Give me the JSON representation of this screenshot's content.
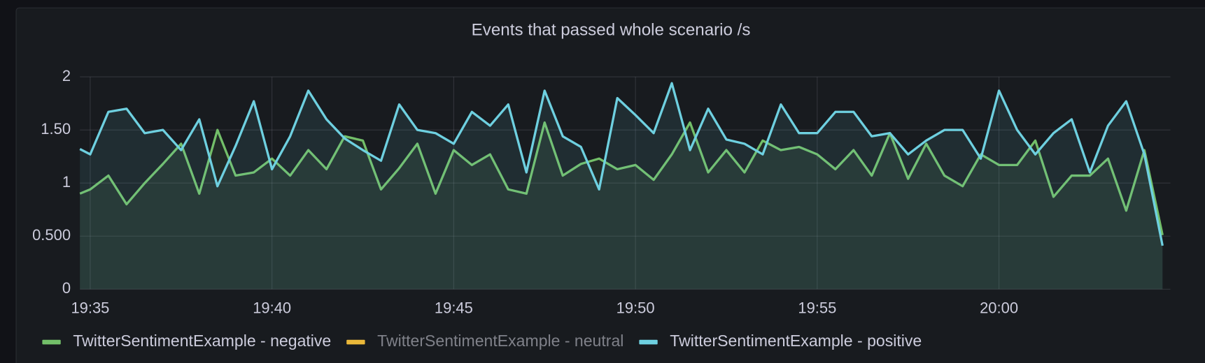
{
  "chart_data": {
    "type": "line",
    "title": "Events that passed whole scenario /s",
    "x": [
      "19:34:43",
      "19:35:00",
      "19:35:30",
      "19:36:00",
      "19:36:30",
      "19:37:00",
      "19:37:30",
      "19:38:00",
      "19:38:30",
      "19:39:00",
      "19:39:30",
      "19:40:00",
      "19:40:30",
      "19:41:00",
      "19:41:30",
      "19:42:00",
      "19:42:30",
      "19:43:00",
      "19:43:30",
      "19:44:00",
      "19:44:30",
      "19:45:00",
      "19:45:30",
      "19:46:00",
      "19:46:30",
      "19:47:00",
      "19:47:30",
      "19:48:00",
      "19:48:30",
      "19:49:00",
      "19:49:30",
      "19:50:00",
      "19:50:30",
      "19:51:00",
      "19:51:30",
      "19:52:00",
      "19:52:30",
      "19:53:00",
      "19:53:30",
      "19:54:00",
      "19:54:30",
      "19:55:00",
      "19:55:30",
      "19:56:00",
      "19:56:30",
      "19:57:00",
      "19:57:30",
      "19:58:00",
      "19:58:30",
      "19:59:00",
      "19:59:30",
      "20:00:00",
      "20:00:30",
      "20:01:00",
      "20:01:30",
      "20:02:00",
      "20:02:30",
      "20:03:00",
      "20:03:30",
      "20:04:00",
      "20:04:30"
    ],
    "series": [
      {
        "name": "TwitterSentimentExample - negative",
        "color": "#73bf69",
        "values": [
          0.9,
          0.94,
          1.07,
          0.8,
          1.0,
          1.18,
          1.37,
          0.9,
          1.5,
          1.07,
          1.1,
          1.23,
          1.07,
          1.31,
          1.13,
          1.44,
          1.4,
          0.94,
          1.14,
          1.37,
          0.9,
          1.31,
          1.17,
          1.27,
          0.94,
          0.9,
          1.57,
          1.07,
          1.18,
          1.23,
          1.13,
          1.17,
          1.03,
          1.27,
          1.57,
          1.1,
          1.31,
          1.1,
          1.4,
          1.31,
          1.34,
          1.27,
          1.13,
          1.31,
          1.07,
          1.47,
          1.04,
          1.37,
          1.07,
          0.97,
          1.27,
          1.17,
          1.17,
          1.4,
          0.87,
          1.07,
          1.07,
          1.23,
          0.74,
          1.31,
          0.51
        ]
      },
      {
        "name": "TwitterSentimentExample - neutral",
        "color": "#eab839",
        "hidden": true
      },
      {
        "name": "TwitterSentimentExample - positive",
        "color": "#6ed0e0",
        "values": [
          1.32,
          1.27,
          1.67,
          1.7,
          1.47,
          1.5,
          1.31,
          1.6,
          0.97,
          1.35,
          1.77,
          1.13,
          1.44,
          1.87,
          1.6,
          1.42,
          1.31,
          1.21,
          1.74,
          1.5,
          1.47,
          1.37,
          1.67,
          1.54,
          1.74,
          1.1,
          1.87,
          1.44,
          1.34,
          0.94,
          1.8,
          1.64,
          1.47,
          1.94,
          1.31,
          1.7,
          1.41,
          1.37,
          1.27,
          1.74,
          1.47,
          1.47,
          1.67,
          1.67,
          1.44,
          1.47,
          1.27,
          1.4,
          1.5,
          1.5,
          1.23,
          1.87,
          1.5,
          1.27,
          1.47,
          1.6,
          1.1,
          1.54,
          1.77,
          1.27,
          0.41
        ]
      }
    ],
    "xlim": [
      "19:34:43",
      "20:04:43"
    ],
    "xticks": [
      "19:35",
      "19:40",
      "19:45",
      "19:50",
      "19:55",
      "20:00"
    ],
    "ylim": [
      0,
      2
    ],
    "yticks": [
      0,
      {
        "value": 0.5,
        "label": "0.500"
      },
      1,
      {
        "value": 1.5,
        "label": "1.50"
      },
      2
    ],
    "grid": true,
    "legend": "bottom"
  }
}
